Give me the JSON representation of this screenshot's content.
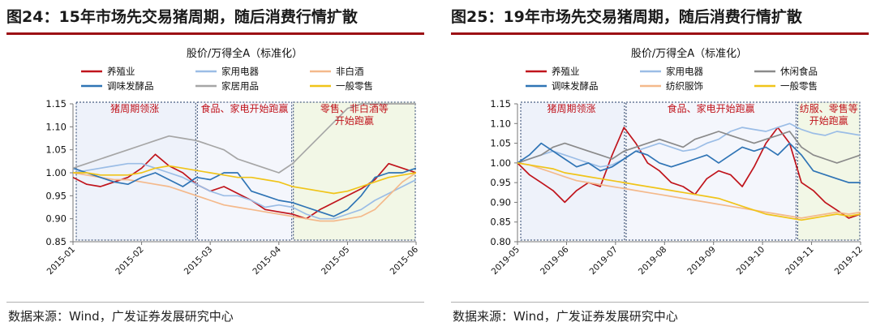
{
  "panels": [
    {
      "title": "图24：15年市场先交易猪周期，随后消费行情扩散",
      "source": "数据来源：Wind，广发证券发展研究中心",
      "chart_data": {
        "type": "line",
        "title": "股价/万得全A（标准化）",
        "xlabel": "",
        "ylabel": "",
        "x_ticks": [
          "2015-01",
          "2015-02",
          "2015-03",
          "2015-04",
          "2015-05",
          "2015-06"
        ],
        "y_ticks": [
          "0.85",
          "0.90",
          "0.95",
          "1.00",
          "1.05",
          "1.10",
          "1.15"
        ],
        "ylim": [
          0.85,
          1.15
        ],
        "grid": false,
        "legend_position": "top",
        "phase_boundaries": [
          1.8,
          3.2
        ],
        "phases": [
          {
            "label": "猪周期领涨",
            "color": "#eef2fa"
          },
          {
            "label": "食品、家电开始跑赢",
            "color": "#f4f6fc"
          },
          {
            "label": "零售、非白酒等开始跑赢",
            "color": "#f2f7e6"
          }
        ],
        "series": [
          {
            "name": "养殖业",
            "color": "#c0141c",
            "values": [
              0.99,
              0.975,
              0.97,
              0.98,
              0.99,
              1.01,
              1.04,
              1.015,
              1.0,
              0.975,
              0.96,
              0.97,
              0.955,
              0.94,
              0.92,
              0.915,
              0.91,
              0.9,
              0.92,
              0.935,
              0.95,
              0.965,
              0.985,
              1.02,
              1.01,
              1.0
            ]
          },
          {
            "name": "家用电器",
            "color": "#9bbde6",
            "values": [
              1.0,
              1.005,
              1.01,
              1.015,
              1.02,
              1.02,
              1.01,
              1.0,
              0.99,
              0.975,
              0.96,
              0.95,
              0.95,
              0.94,
              0.925,
              0.93,
              0.925,
              0.91,
              0.9,
              0.9,
              0.91,
              0.92,
              0.94,
              0.955,
              0.97,
              0.985
            ]
          },
          {
            "name": "非白酒",
            "color": "#f4b98b",
            "values": [
              1.0,
              0.995,
              0.99,
              0.985,
              0.985,
              0.98,
              0.975,
              0.97,
              0.96,
              0.95,
              0.94,
              0.93,
              0.925,
              0.92,
              0.915,
              0.91,
              0.905,
              0.9,
              0.895,
              0.895,
              0.9,
              0.905,
              0.92,
              0.95,
              0.98,
              1.0
            ]
          },
          {
            "name": "调味发酵品",
            "color": "#2f74b5",
            "values": [
              1.01,
              1.0,
              0.99,
              0.98,
              0.975,
              0.99,
              1.0,
              0.985,
              0.97,
              0.99,
              0.985,
              1.0,
              1.0,
              0.96,
              0.95,
              0.94,
              0.935,
              0.925,
              0.915,
              0.905,
              0.92,
              0.95,
              0.99,
              1.0,
              1.0,
              1.01
            ]
          },
          {
            "name": "家居用品",
            "color": "#a6a6a6",
            "values": [
              1.01,
              1.02,
              1.03,
              1.04,
              1.05,
              1.06,
              1.07,
              1.08,
              1.075,
              1.07,
              1.06,
              1.05,
              1.03,
              1.02,
              1.01,
              1.0,
              1.02,
              1.05,
              1.08,
              1.11,
              1.14,
              1.15,
              1.15,
              1.15,
              1.15,
              1.15
            ]
          },
          {
            "name": "一般零售",
            "color": "#f0c419",
            "values": [
              1.0,
              1.0,
              0.995,
              0.995,
              0.995,
              1.0,
              1.01,
              1.015,
              1.01,
              1.005,
              1.0,
              0.995,
              0.99,
              0.99,
              0.985,
              0.98,
              0.97,
              0.965,
              0.96,
              0.955,
              0.96,
              0.97,
              0.98,
              0.99,
              0.995,
              1.0
            ]
          }
        ]
      }
    },
    {
      "title": "图25：19年市场先交易猪周期，随后消费行情扩散",
      "source": "数据来源：Wind，广发证券发展研究中心",
      "chart_data": {
        "type": "line",
        "title": "股价/万得全A（标准化）",
        "xlabel": "",
        "ylabel": "",
        "x_ticks": [
          "2019-05",
          "2019-06",
          "2019-07",
          "2019-08",
          "2019-09",
          "2019-10",
          "2019-11",
          "2019-12"
        ],
        "y_ticks": [
          "0.80",
          "0.85",
          "0.90",
          "0.95",
          "1.00",
          "1.05",
          "1.10",
          "1.15"
        ],
        "ylim": [
          0.8,
          1.15
        ],
        "grid": false,
        "legend_position": "top",
        "phase_boundaries": [
          2.2,
          5.7
        ],
        "phases": [
          {
            "label": "猪周期领涨",
            "color": "#eef2fa"
          },
          {
            "label": "食品、家电开始跑赢",
            "color": "#f4f6fc"
          },
          {
            "label": "纺服、零售等开始跑赢",
            "color": "#f2f7e6"
          }
        ],
        "series": [
          {
            "name": "养殖业",
            "color": "#c0141c",
            "values": [
              1.0,
              0.97,
              0.95,
              0.93,
              0.9,
              0.93,
              0.95,
              0.94,
              1.02,
              1.09,
              1.05,
              1.0,
              0.98,
              0.95,
              0.94,
              0.92,
              0.96,
              0.98,
              0.97,
              0.94,
              0.99,
              1.05,
              1.09,
              1.05,
              0.95,
              0.93,
              0.9,
              0.88,
              0.86,
              0.87
            ]
          },
          {
            "name": "家用电器",
            "color": "#9bbde6",
            "values": [
              1.0,
              1.01,
              1.02,
              1.03,
              1.02,
              1.01,
              1.0,
              0.99,
              0.995,
              1.01,
              1.03,
              1.04,
              1.05,
              1.04,
              1.03,
              1.035,
              1.05,
              1.06,
              1.08,
              1.09,
              1.085,
              1.08,
              1.09,
              1.1,
              1.085,
              1.075,
              1.07,
              1.08,
              1.075,
              1.07
            ]
          },
          {
            "name": "休闲食品",
            "color": "#8a8a8a",
            "values": [
              1.0,
              1.01,
              1.02,
              1.04,
              1.05,
              1.04,
              1.03,
              1.02,
              1.01,
              1.03,
              1.04,
              1.05,
              1.06,
              1.05,
              1.04,
              1.06,
              1.07,
              1.08,
              1.07,
              1.06,
              1.05,
              1.06,
              1.07,
              1.08,
              1.04,
              1.02,
              1.01,
              1.0,
              1.01,
              1.02
            ]
          },
          {
            "name": "调味发酵品",
            "color": "#2f74b5",
            "values": [
              1.0,
              1.02,
              1.05,
              1.03,
              1.01,
              0.99,
              1.0,
              0.98,
              0.99,
              1.01,
              1.03,
              1.02,
              1.0,
              0.99,
              1.0,
              1.01,
              1.02,
              1.0,
              1.02,
              1.04,
              1.03,
              1.04,
              1.02,
              1.05,
              1.02,
              0.98,
              0.97,
              0.96,
              0.95,
              0.95
            ]
          },
          {
            "name": "纺织服饰",
            "color": "#f4b98b",
            "values": [
              1.0,
              0.995,
              0.985,
              0.975,
              0.965,
              0.955,
              0.95,
              0.945,
              0.94,
              0.935,
              0.93,
              0.925,
              0.92,
              0.915,
              0.91,
              0.905,
              0.9,
              0.895,
              0.89,
              0.885,
              0.88,
              0.875,
              0.87,
              0.865,
              0.86,
              0.865,
              0.87,
              0.875,
              0.87,
              0.875
            ]
          },
          {
            "name": "一般零售",
            "color": "#f0c419",
            "values": [
              1.0,
              0.995,
              0.99,
              0.985,
              0.975,
              0.97,
              0.965,
              0.96,
              0.955,
              0.95,
              0.945,
              0.94,
              0.935,
              0.93,
              0.925,
              0.92,
              0.915,
              0.91,
              0.9,
              0.89,
              0.88,
              0.87,
              0.865,
              0.86,
              0.855,
              0.86,
              0.865,
              0.87,
              0.865,
              0.87
            ]
          }
        ]
      }
    }
  ]
}
